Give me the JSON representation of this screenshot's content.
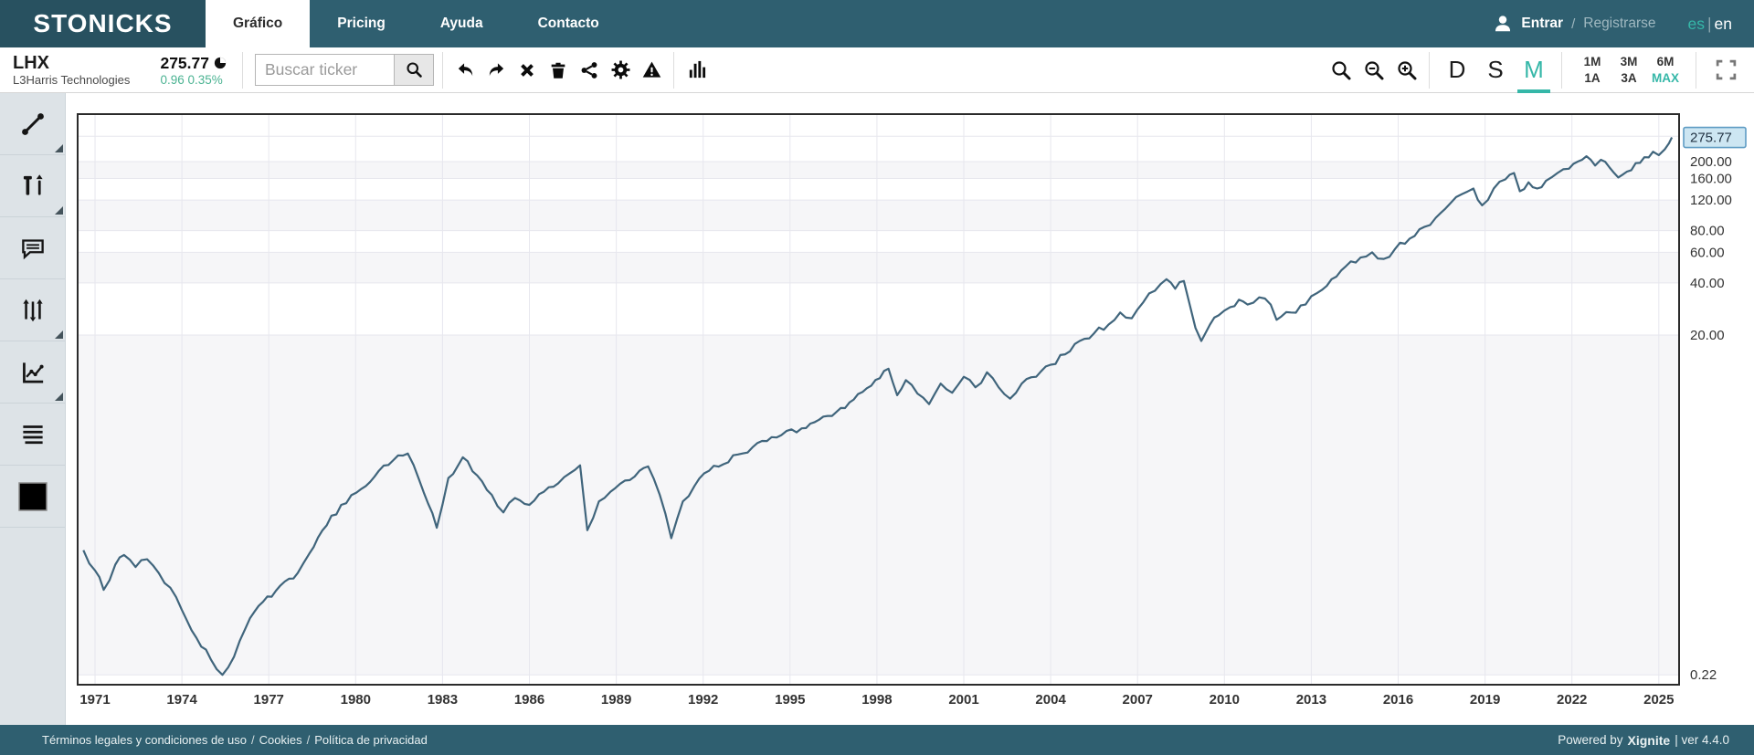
{
  "brand": {
    "logo": "STONICKS",
    "accent_color": "#35b7a8",
    "bar_color": "#2f5f70"
  },
  "nav": {
    "tabs": [
      {
        "label": "Gráfico",
        "active": true
      },
      {
        "label": "Pricing",
        "active": false
      },
      {
        "label": "Ayuda",
        "active": false
      },
      {
        "label": "Contacto",
        "active": false
      }
    ],
    "auth": {
      "login": "Entrar",
      "separator": "/",
      "register": "Registrarse"
    },
    "lang": {
      "es": "es",
      "divider": "|",
      "en": "en",
      "selected": "es"
    }
  },
  "ticker": {
    "symbol": "LHX",
    "name": "L3Harris Technologies",
    "price": "275.77",
    "change": "0.96 0.35%",
    "change_color": "#4bb392"
  },
  "toolbar": {
    "search_placeholder": "Buscar ticker",
    "chart_types": [
      {
        "label": "D",
        "active": false
      },
      {
        "label": "S",
        "active": false
      },
      {
        "label": "M",
        "active": true
      }
    ],
    "periods": [
      {
        "label": "1M",
        "active": false
      },
      {
        "label": "3M",
        "active": false
      },
      {
        "label": "6M",
        "active": false
      },
      {
        "label": "1A",
        "active": false
      },
      {
        "label": "3A",
        "active": false
      },
      {
        "label": "MAX",
        "active": true
      }
    ]
  },
  "footer": {
    "links": [
      "Términos legales y condiciones de uso",
      "Cookies",
      "Política de privacidad"
    ],
    "divider": "/",
    "powered_prefix": "Powered by",
    "powered_brand": "Xignite",
    "version": "| ver 4.4.0"
  },
  "chart_data": {
    "type": "line",
    "scale": "log",
    "title": "",
    "xlabel": "",
    "ylabel": "",
    "xlim": [
      1970.4,
      2025.7
    ],
    "ylim": [
      0.193,
      375.7
    ],
    "grid": true,
    "line_color": "#40657c",
    "band_color": "#f6f6f8",
    "grid_color": "#e7e7ee",
    "border_color": "#2b2b2b",
    "label_color": "#333333",
    "current_price": {
      "label": "275.77",
      "value": 275.77,
      "box_fill": "#cde6f2",
      "box_border": "#5f9cc4"
    },
    "price_labels": [
      {
        "label": "200.00",
        "value": 200
      },
      {
        "label": "160.00",
        "value": 160
      },
      {
        "label": "120.00",
        "value": 120
      },
      {
        "label": "80.00",
        "value": 80
      },
      {
        "label": "60.00",
        "value": 60
      },
      {
        "label": "40.00",
        "value": 40
      },
      {
        "label": "20.00",
        "value": 20
      },
      {
        "label": "0.22",
        "value": 0.22
      }
    ],
    "gridline_values": [
      280,
      200,
      160,
      120,
      80,
      60,
      40,
      20,
      0.22
    ],
    "shaded_bands": [
      [
        200,
        160
      ],
      [
        120,
        80
      ],
      [
        60,
        40
      ],
      [
        20,
        0.22
      ]
    ],
    "x_ticks": [
      1971,
      1974,
      1977,
      1980,
      1983,
      1986,
      1989,
      1992,
      1995,
      1998,
      2001,
      2004,
      2007,
      2010,
      2013,
      2016,
      2019,
      2022,
      2025
    ],
    "noise": 0.042,
    "series": [
      {
        "name": "LHX",
        "points": [
          [
            1970.6,
            1.15
          ],
          [
            1971.0,
            0.88
          ],
          [
            1971.3,
            0.68
          ],
          [
            1971.7,
            0.95
          ],
          [
            1972.0,
            1.08
          ],
          [
            1972.4,
            0.92
          ],
          [
            1972.8,
            1.02
          ],
          [
            1973.2,
            0.85
          ],
          [
            1973.6,
            0.7
          ],
          [
            1974.0,
            0.52
          ],
          [
            1974.5,
            0.36
          ],
          [
            1975.0,
            0.27
          ],
          [
            1975.4,
            0.22
          ],
          [
            1975.8,
            0.28
          ],
          [
            1976.2,
            0.41
          ],
          [
            1976.8,
            0.58
          ],
          [
            1977.4,
            0.72
          ],
          [
            1978.0,
            0.85
          ],
          [
            1978.4,
            1.1
          ],
          [
            1979.0,
            1.6
          ],
          [
            1979.5,
            2.1
          ],
          [
            1980.2,
            2.6
          ],
          [
            1980.8,
            3.3
          ],
          [
            1981.3,
            3.8
          ],
          [
            1981.8,
            4.15
          ],
          [
            1982.2,
            2.9
          ],
          [
            1982.8,
            1.55
          ],
          [
            1983.2,
            3.0
          ],
          [
            1983.7,
            3.95
          ],
          [
            1984.2,
            3.1
          ],
          [
            1984.7,
            2.4
          ],
          [
            1985.1,
            1.9
          ],
          [
            1985.5,
            2.3
          ],
          [
            1986.0,
            2.1
          ],
          [
            1986.5,
            2.5
          ],
          [
            1987.0,
            2.8
          ],
          [
            1987.4,
            3.2
          ],
          [
            1987.75,
            3.55
          ],
          [
            1988.0,
            1.5
          ],
          [
            1988.4,
            2.2
          ],
          [
            1988.8,
            2.5
          ],
          [
            1989.3,
            2.9
          ],
          [
            1989.8,
            3.3
          ],
          [
            1990.1,
            3.5
          ],
          [
            1990.5,
            2.4
          ],
          [
            1990.9,
            1.35
          ],
          [
            1991.3,
            2.2
          ],
          [
            1991.7,
            2.7
          ],
          [
            1992.2,
            3.3
          ],
          [
            1992.7,
            3.6
          ],
          [
            1993.2,
            4.1
          ],
          [
            1993.7,
            4.5
          ],
          [
            1994.2,
            4.9
          ],
          [
            1994.7,
            5.3
          ],
          [
            1995.4,
            5.8
          ],
          [
            1996.0,
            6.5
          ],
          [
            1996.6,
            7.2
          ],
          [
            1997.2,
            8.5
          ],
          [
            1997.8,
            10.2
          ],
          [
            1998.4,
            12.8
          ],
          [
            1998.7,
            9.0
          ],
          [
            1999.0,
            11.0
          ],
          [
            1999.4,
            9.2
          ],
          [
            1999.8,
            8.0
          ],
          [
            2000.2,
            10.5
          ],
          [
            2000.6,
            9.3
          ],
          [
            2001.0,
            11.5
          ],
          [
            2001.4,
            10.0
          ],
          [
            2001.8,
            12.2
          ],
          [
            2002.2,
            10.0
          ],
          [
            2002.6,
            8.6
          ],
          [
            2003.0,
            10.5
          ],
          [
            2003.5,
            11.5
          ],
          [
            2004.0,
            13.5
          ],
          [
            2004.5,
            15.5
          ],
          [
            2005.0,
            18.5
          ],
          [
            2005.5,
            20.5
          ],
          [
            2006.0,
            23.0
          ],
          [
            2006.4,
            27.0
          ],
          [
            2006.8,
            25.0
          ],
          [
            2007.2,
            31.0
          ],
          [
            2007.6,
            36.0
          ],
          [
            2008.0,
            42.0
          ],
          [
            2008.3,
            37.0
          ],
          [
            2008.6,
            41.0
          ],
          [
            2008.8,
            30.0
          ],
          [
            2009.0,
            22.0
          ],
          [
            2009.2,
            18.5
          ],
          [
            2009.5,
            23.0
          ],
          [
            2009.8,
            26.0
          ],
          [
            2010.2,
            29.0
          ],
          [
            2010.5,
            32.0
          ],
          [
            2010.8,
            30.0
          ],
          [
            2011.2,
            33.0
          ],
          [
            2011.6,
            30.0
          ],
          [
            2011.8,
            24.5
          ],
          [
            2012.3,
            27.0
          ],
          [
            2012.8,
            30.0
          ],
          [
            2013.2,
            35.0
          ],
          [
            2013.7,
            42.0
          ],
          [
            2014.2,
            50.0
          ],
          [
            2014.7,
            56.0
          ],
          [
            2015.1,
            60.0
          ],
          [
            2015.5,
            55.0
          ],
          [
            2015.9,
            63.0
          ],
          [
            2016.4,
            72.0
          ],
          [
            2016.9,
            84.0
          ],
          [
            2017.3,
            95.0
          ],
          [
            2017.8,
            115.0
          ],
          [
            2018.2,
            130.0
          ],
          [
            2018.6,
            140.0
          ],
          [
            2018.9,
            112.0
          ],
          [
            2019.3,
            140.0
          ],
          [
            2019.7,
            158.0
          ],
          [
            2020.0,
            172.0
          ],
          [
            2020.2,
            135.0
          ],
          [
            2020.5,
            152.0
          ],
          [
            2020.8,
            140.0
          ],
          [
            2021.1,
            155.0
          ],
          [
            2021.5,
            172.0
          ],
          [
            2021.9,
            182.0
          ],
          [
            2022.2,
            200.0
          ],
          [
            2022.5,
            215.0
          ],
          [
            2022.8,
            190.0
          ],
          [
            2023.0,
            205.0
          ],
          [
            2023.3,
            185.0
          ],
          [
            2023.6,
            162.0
          ],
          [
            2023.9,
            175.0
          ],
          [
            2024.2,
            196.0
          ],
          [
            2024.5,
            212.0
          ],
          [
            2024.8,
            228.0
          ],
          [
            2025.0,
            218.0
          ],
          [
            2025.2,
            235.0
          ],
          [
            2025.35,
            255.0
          ],
          [
            2025.45,
            275.77
          ]
        ]
      }
    ]
  }
}
